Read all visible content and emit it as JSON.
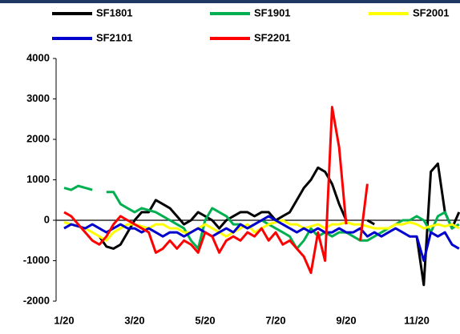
{
  "chart_data": {
    "type": "line",
    "categories": [
      "1/20",
      null,
      null,
      null,
      null,
      null,
      null,
      null,
      null,
      null,
      "3/20",
      null,
      null,
      null,
      null,
      null,
      null,
      null,
      null,
      null,
      "5/20",
      null,
      null,
      null,
      null,
      null,
      null,
      null,
      null,
      null,
      "7/20",
      null,
      null,
      null,
      null,
      null,
      null,
      null,
      null,
      null,
      "9/20",
      null,
      null,
      null,
      null,
      null,
      null,
      null,
      null,
      null,
      "11/20",
      null,
      null,
      null,
      null,
      null,
      null
    ],
    "series": [
      {
        "name": "SF1801",
        "color": "#000000",
        "values": [
          null,
          null,
          null,
          null,
          null,
          -400,
          -650,
          -700,
          -600,
          -300,
          0,
          200,
          200,
          500,
          400,
          300,
          100,
          -100,
          0,
          200,
          100,
          0,
          -200,
          0,
          100,
          200,
          200,
          100,
          200,
          200,
          0,
          100,
          200,
          500,
          800,
          1000,
          1300,
          1200,
          900,
          400,
          0,
          null,
          null,
          0,
          -100,
          null,
          null,
          null,
          null,
          null,
          -400,
          -1600,
          1200,
          1400,
          200,
          -200,
          200
        ]
      },
      {
        "name": "SF1901",
        "color": "#00b050",
        "values": [
          800,
          750,
          850,
          800,
          750,
          null,
          700,
          700,
          400,
          300,
          200,
          300,
          250,
          200,
          100,
          0,
          -100,
          -200,
          -500,
          -700,
          0,
          300,
          200,
          100,
          -100,
          -100,
          -200,
          -100,
          0,
          -100,
          -200,
          -300,
          -400,
          -700,
          -500,
          -200,
          -400,
          -300,
          -400,
          -300,
          -300,
          -400,
          -500,
          -500,
          -400,
          -300,
          -200,
          -100,
          0,
          0,
          100,
          0,
          -300,
          100,
          200,
          -200,
          -100
        ]
      },
      {
        "name": "SF2001",
        "color": "#ffff00",
        "values": [
          -50,
          -100,
          -150,
          -200,
          -300,
          -400,
          -500,
          -300,
          -200,
          -100,
          -100,
          -150,
          -200,
          -100,
          -100,
          -200,
          -200,
          -300,
          -300,
          -200,
          -100,
          -200,
          -300,
          -400,
          -300,
          -200,
          -100,
          -300,
          -200,
          -100,
          -50,
          0,
          -100,
          -100,
          -200,
          -150,
          -100,
          -200,
          -100,
          -100,
          -50,
          -100,
          -100,
          -150,
          -200,
          -200,
          -200,
          -100,
          -100,
          -50,
          -100,
          -200,
          -150,
          -100,
          -150,
          -100,
          -200
        ]
      },
      {
        "name": "SF2101",
        "color": "#0000cc",
        "values": [
          -200,
          -100,
          -150,
          -200,
          -100,
          -200,
          -300,
          -200,
          -100,
          -200,
          -200,
          -300,
          -200,
          -300,
          -400,
          -300,
          -300,
          -400,
          -300,
          -200,
          -300,
          -400,
          -300,
          -200,
          -300,
          -100,
          -200,
          -100,
          0,
          100,
          0,
          -100,
          -200,
          -300,
          -200,
          -300,
          -200,
          -300,
          -300,
          -200,
          -300,
          -300,
          -200,
          -400,
          -300,
          -400,
          -300,
          -200,
          -300,
          -400,
          -400,
          -1000,
          -300,
          -400,
          -300,
          -600,
          -700
        ]
      },
      {
        "name": "SF2201",
        "color": "#ff0000",
        "values": [
          200,
          100,
          -100,
          -300,
          -500,
          -600,
          -400,
          -100,
          100,
          0,
          -100,
          -200,
          -300,
          -800,
          -700,
          -500,
          -700,
          -500,
          -600,
          -800,
          -300,
          -400,
          -800,
          -500,
          -400,
          -500,
          -300,
          -400,
          -200,
          -500,
          -300,
          -600,
          -500,
          -700,
          -900,
          -1300,
          -300,
          -1000,
          2800,
          1800,
          -100,
          null,
          -500,
          900,
          null,
          null,
          null,
          null,
          null,
          null,
          null,
          null,
          null,
          null,
          null,
          null,
          null
        ]
      }
    ],
    "ylim": [
      -2000,
      4000
    ],
    "yticks": [
      -2000,
      -1000,
      0,
      1000,
      2000,
      3000,
      4000
    ]
  }
}
